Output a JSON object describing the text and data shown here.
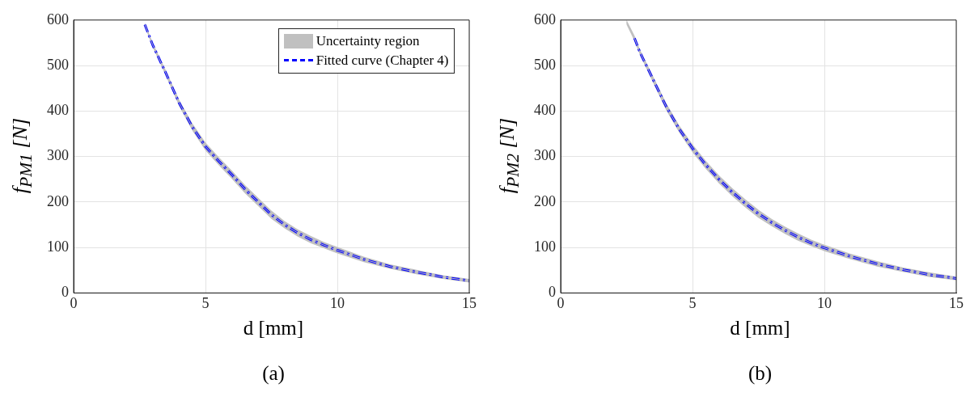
{
  "chart_data": [
    {
      "type": "line",
      "xlabel": "d [mm]",
      "ylabel": "f$_{PM1}$ [N]",
      "annotations": [
        "(a)"
      ],
      "xlim": [
        0,
        15
      ],
      "xticks": [
        0,
        5,
        10,
        15
      ],
      "ylim": [
        0,
        600
      ],
      "yticks": [
        0,
        100,
        200,
        300,
        400,
        500,
        600
      ],
      "grid": true,
      "legend": "top right",
      "series": [
        {
          "name": "Uncertainty region",
          "type": "line",
          "color": "#c0c0c0",
          "x": [
            2.7,
            3,
            3.5,
            4,
            4.5,
            5,
            5.5,
            6,
            6.5,
            7,
            7.5,
            8,
            8.5,
            9,
            9.5,
            10,
            11,
            12,
            13,
            14,
            15
          ],
          "values": [
            590,
            545,
            483,
            418,
            365,
            322,
            290,
            260,
            228,
            200,
            172,
            150,
            132,
            117,
            105,
            94,
            74,
            58,
            46,
            35,
            27
          ],
          "lower": [
            586,
            540,
            477,
            411,
            357,
            313,
            281,
            251,
            219,
            191,
            163,
            142,
            124,
            109,
            98,
            87,
            68,
            53,
            41,
            31,
            23
          ],
          "upper": [
            594,
            550,
            489,
            425,
            373,
            331,
            299,
            269,
            237,
            209,
            181,
            158,
            140,
            125,
            112,
            101,
            80,
            63,
            51,
            39,
            31
          ]
        },
        {
          "name": "Fitted curve (Chapter 4)",
          "type": "line",
          "color": "#0000ff",
          "line_style": "dashdot",
          "x": [
            2.7,
            3,
            3.5,
            4,
            4.5,
            5,
            5.5,
            6,
            6.5,
            7,
            7.5,
            8,
            8.5,
            9,
            9.5,
            10,
            11,
            12,
            13,
            14,
            15
          ],
          "values": [
            590,
            545,
            483,
            418,
            365,
            322,
            290,
            260,
            228,
            200,
            172,
            150,
            132,
            117,
            105,
            94,
            74,
            58,
            46,
            35,
            27
          ]
        }
      ]
    },
    {
      "type": "line",
      "xlabel": "d [mm]",
      "ylabel": "f$_{PM2}$ [N]",
      "annotations": [
        "(b)"
      ],
      "xlim": [
        0,
        15
      ],
      "xticks": [
        0,
        5,
        10,
        15
      ],
      "ylim": [
        0,
        600
      ],
      "yticks": [
        0,
        100,
        200,
        300,
        400,
        500,
        600
      ],
      "grid": true,
      "series": [
        {
          "type": "line",
          "color": "#c0c0c0",
          "x": [
            2.5,
            2.8,
            3,
            3.5,
            4,
            4.5,
            5,
            5.5,
            6,
            6.5,
            7,
            7.5,
            8,
            8.5,
            9,
            9.5,
            10,
            11,
            12,
            13,
            14,
            15
          ],
          "values": [
            595,
            560,
            530,
            470,
            410,
            360,
            318,
            282,
            250,
            222,
            197,
            174,
            155,
            138,
            123,
            110,
            99,
            80,
            64,
            51,
            40,
            32
          ],
          "lower": [
            590,
            554,
            524,
            463,
            402,
            352,
            309,
            273,
            241,
            213,
            188,
            165,
            147,
            130,
            115,
            103,
            92,
            74,
            58,
            46,
            35,
            28
          ],
          "upper": [
            600,
            566,
            536,
            477,
            418,
            368,
            327,
            291,
            259,
            231,
            206,
            183,
            163,
            146,
            131,
            117,
            106,
            86,
            70,
            56,
            45,
            36
          ]
        },
        {
          "type": "line",
          "color": "#0000ff",
          "line_style": "dashdot",
          "x": [
            2.8,
            3,
            3.5,
            4,
            4.5,
            5,
            5.5,
            6,
            6.5,
            7,
            7.5,
            8,
            8.5,
            9,
            9.5,
            10,
            11,
            12,
            13,
            14,
            15
          ],
          "values": [
            560,
            530,
            470,
            410,
            360,
            318,
            282,
            250,
            222,
            197,
            174,
            155,
            138,
            123,
            110,
            99,
            80,
            64,
            51,
            40,
            32
          ]
        }
      ]
    }
  ]
}
